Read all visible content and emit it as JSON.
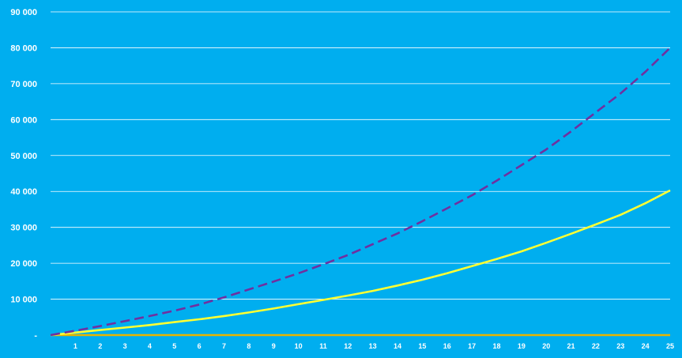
{
  "chart_data": {
    "type": "line",
    "title": "",
    "xlabel": "",
    "ylabel": "",
    "x": [
      0,
      1,
      2,
      3,
      4,
      5,
      6,
      7,
      8,
      9,
      10,
      11,
      12,
      13,
      14,
      15,
      16,
      17,
      18,
      19,
      20,
      21,
      22,
      23,
      24,
      25
    ],
    "xticks": [
      "1",
      "2",
      "3",
      "4",
      "5",
      "6",
      "7",
      "8",
      "9",
      "10",
      "11",
      "12",
      "13",
      "14",
      "15",
      "16",
      "17",
      "18",
      "19",
      "20",
      "21",
      "22",
      "23",
      "24",
      "25"
    ],
    "yticks": [
      {
        "value": 0,
        "label": "-"
      },
      {
        "value": 10000,
        "label": "10 000"
      },
      {
        "value": 20000,
        "label": "20 000"
      },
      {
        "value": 30000,
        "label": "30 000"
      },
      {
        "value": 40000,
        "label": "40 000"
      },
      {
        "value": 50000,
        "label": "50 000"
      },
      {
        "value": 60000,
        "label": "60 000"
      },
      {
        "value": 70000,
        "label": "70 000"
      },
      {
        "value": 80000,
        "label": "80 000"
      },
      {
        "value": 90000,
        "label": "90 000"
      }
    ],
    "ylim": [
      0,
      90000
    ],
    "grid": true,
    "series": [
      {
        "style": "dashed",
        "color": "#7030A0",
        "values": [
          0,
          1200,
          2500,
          3900,
          5300,
          6800,
          8500,
          10500,
          12700,
          14900,
          17200,
          19700,
          22300,
          25300,
          28300,
          31700,
          35300,
          38900,
          43000,
          47300,
          51700,
          56700,
          62000,
          67300,
          73300,
          80000
        ]
      },
      {
        "style": "solid",
        "color": "#FFFF33",
        "values": [
          0,
          700,
          1400,
          2100,
          2800,
          3600,
          4400,
          5300,
          6300,
          7400,
          8600,
          9800,
          11000,
          12300,
          13800,
          15400,
          17200,
          19200,
          21200,
          23300,
          25700,
          28200,
          30800,
          33500,
          36700,
          40300
        ]
      },
      {
        "style": "solid",
        "color": "#E8B400",
        "values": [
          0,
          0,
          0,
          0,
          0,
          0,
          0,
          0,
          0,
          0,
          0,
          0,
          0,
          0,
          0,
          0,
          0,
          0,
          0,
          0,
          0,
          0,
          0,
          0,
          0,
          0
        ]
      }
    ]
  }
}
